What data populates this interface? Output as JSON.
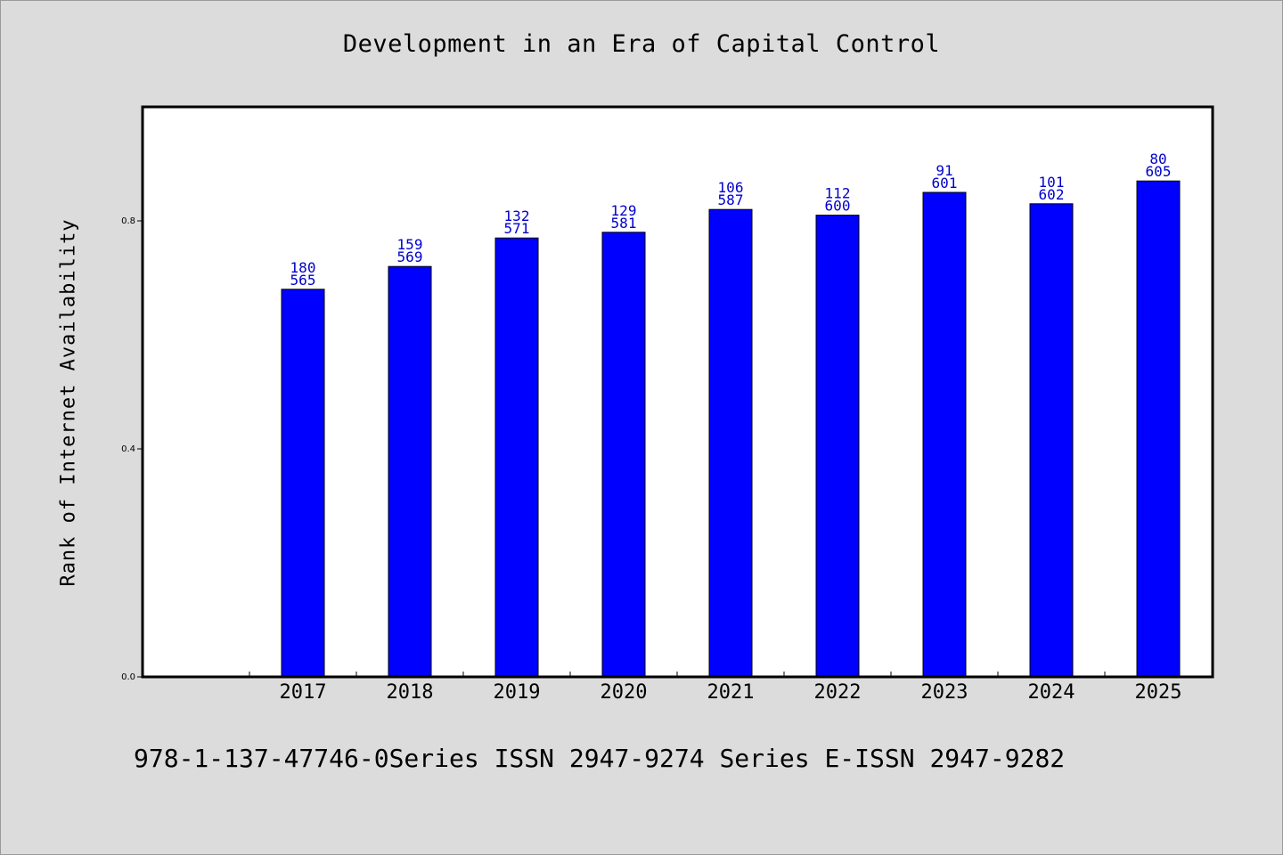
{
  "chart_data": {
    "type": "bar",
    "title": "Development in an Era of Capital Control",
    "xlabel": "",
    "ylabel": "Rank of Internet Availability",
    "categories": [
      "2017",
      "2018",
      "2019",
      "2020",
      "2021",
      "2022",
      "2023",
      "2024",
      "2025"
    ],
    "values": [
      0.68,
      0.72,
      0.77,
      0.78,
      0.82,
      0.81,
      0.85,
      0.83,
      0.87
    ],
    "annotations": [
      {
        "top": "180",
        "bottom": "565"
      },
      {
        "top": "159",
        "bottom": "569"
      },
      {
        "top": "132",
        "bottom": "571"
      },
      {
        "top": "129",
        "bottom": "581"
      },
      {
        "top": "106",
        "bottom": "587"
      },
      {
        "top": "112",
        "bottom": "600"
      },
      {
        "top": "91",
        "bottom": "601"
      },
      {
        "top": "101",
        "bottom": "602"
      },
      {
        "top": "80",
        "bottom": "605"
      }
    ],
    "yticks": [
      "0.0",
      "0.4",
      "0.8"
    ],
    "ytick_values": [
      0.0,
      0.4,
      0.8
    ],
    "ylim": [
      0,
      1.0
    ],
    "grid": false,
    "bar_color": "#0000ff",
    "label_color": "#0000cc"
  },
  "footer": {
    "text": "978-1-137-47746-0Series ISSN 2947-9274 Series E-ISSN 2947-9282"
  }
}
